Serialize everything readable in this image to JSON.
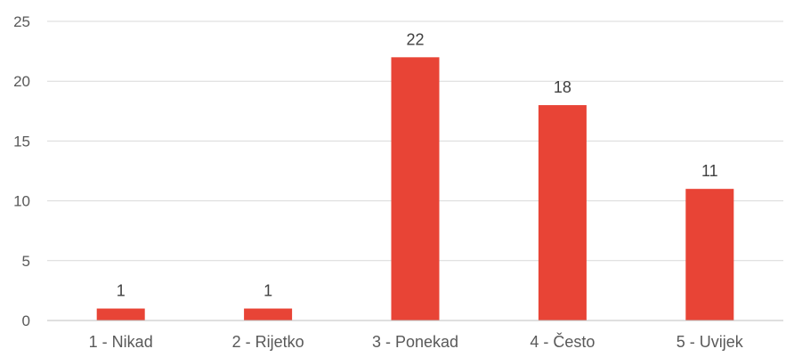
{
  "chart_data": {
    "type": "bar",
    "title": "",
    "xlabel": "",
    "ylabel": "",
    "categories": [
      "1 - Nikad",
      "2 - Rijetko",
      "3 - Ponekad",
      "4 - Često",
      "5 - Uvijek"
    ],
    "values": [
      1,
      1,
      22,
      18,
      11
    ],
    "data_labels": [
      "1",
      "1",
      "22",
      "18",
      "11"
    ],
    "ylim": [
      0,
      25
    ],
    "yticks": [
      0,
      5,
      10,
      15,
      20,
      25
    ],
    "ytick_labels": [
      "0",
      "5",
      "10",
      "15",
      "20",
      "25"
    ],
    "grid": true,
    "legend": "none",
    "colors": {
      "bar": "#E84436",
      "grid": "#D9D9D9",
      "axis": "#BFBFBF",
      "tick_text": "#595959",
      "label_text": "#404040"
    }
  }
}
